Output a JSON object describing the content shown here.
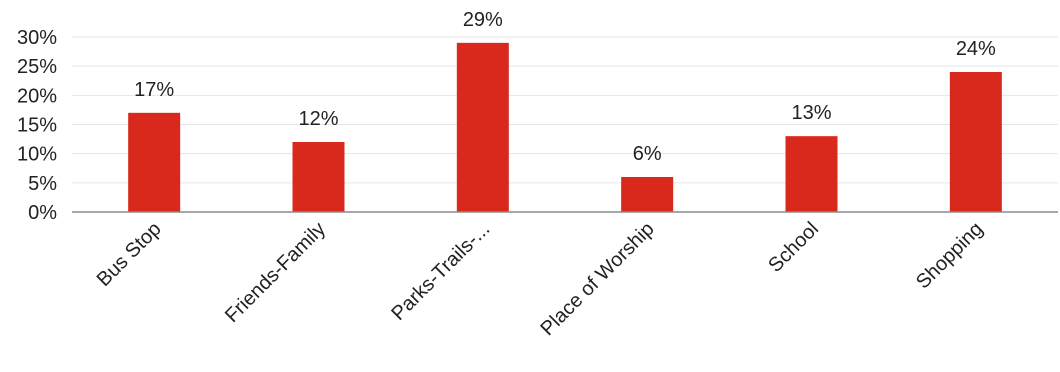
{
  "chart_data": {
    "type": "bar",
    "categories": [
      "Bus Stop",
      "Friends-Family",
      "Parks-Trails-...",
      "Place of Worship",
      "School",
      "Shopping"
    ],
    "values": [
      17,
      12,
      29,
      6,
      13,
      24
    ],
    "value_labels": [
      "17%",
      "12%",
      "29%",
      "6%",
      "13%",
      "24%"
    ],
    "y_ticks": [
      "0%",
      "5%",
      "10%",
      "15%",
      "20%",
      "25%",
      "30%"
    ],
    "ylim": [
      0,
      30
    ],
    "grid": true,
    "legend": "none",
    "title": "",
    "xlabel": "",
    "ylabel": "",
    "bar_color": "#d9291c"
  }
}
